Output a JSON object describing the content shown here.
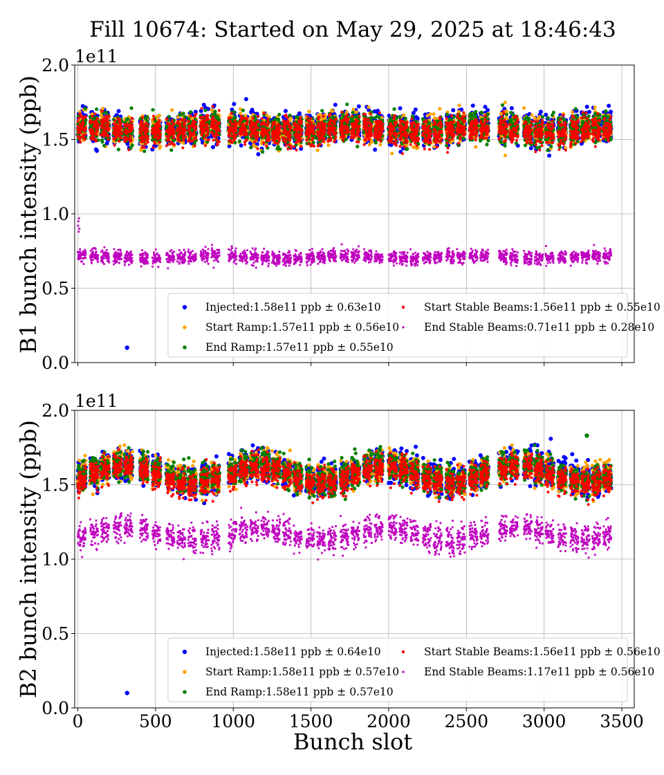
{
  "title": "Fill 10674: Started on May 29, 2025 at 18:46:43",
  "xlabel": "Bunch slot",
  "chart_data": [
    {
      "type": "scatter",
      "panel": "top",
      "ylabel": "B1 bunch intensity (ppb)",
      "y_scale_label": "1e11",
      "y_scale": 100000000000.0,
      "xlim": [
        -20,
        3580
      ],
      "ylim": [
        0.0,
        2.0
      ],
      "x_ticks": [
        "0",
        "500",
        "1000",
        "1500",
        "2000",
        "2500",
        "3000",
        "3500"
      ],
      "y_ticks": [
        "0.0",
        "0.5",
        "1.0",
        "1.5",
        "2.0"
      ],
      "grid": true,
      "legend_position": "lower-right",
      "train_starts": [
        0,
        80,
        150,
        230,
        300,
        400,
        480,
        570,
        640,
        710,
        790,
        860,
        970,
        1040,
        1110,
        1180,
        1250,
        1320,
        1390,
        1470,
        1540,
        1610,
        1690,
        1760,
        1840,
        1910,
        2000,
        2070,
        2140,
        2220,
        2290,
        2370,
        2440,
        2520,
        2590,
        2710,
        2780,
        2870,
        2940,
        3010,
        3090,
        3170,
        3240,
        3310,
        3380
      ],
      "train_length": 48,
      "series": [
        {
          "name": "Injected:1.58e11 ppb ± 0.63e10",
          "color": "#0000ff",
          "marker": "circle-large",
          "mean": 1.58,
          "std": 0.063,
          "outliers": [
            [
              317,
              0.1
            ]
          ]
        },
        {
          "name": "Start Ramp:1.57e11 ppb ± 0.56e10",
          "color": "#ffa500",
          "marker": "circle",
          "mean": 1.57,
          "std": 0.056
        },
        {
          "name": "End Ramp:1.57e11 ppb ± 0.55e10",
          "color": "#008000",
          "marker": "circle",
          "mean": 1.57,
          "std": 0.055
        },
        {
          "name": "Start Stable Beams:1.56e11 ppb ± 0.55e10",
          "color": "#ff0000",
          "marker": "circle-small",
          "mean": 1.56,
          "std": 0.055
        },
        {
          "name": "End Stable Beams:0.71e11 ppb ± 0.28e10",
          "color": "#bf00bf",
          "marker": "square-small",
          "mean": 0.71,
          "std": 0.028,
          "first_bunches": [
            [
              2,
              0.92
            ],
            [
              4,
              0.95
            ],
            [
              6,
              0.88
            ],
            [
              8,
              0.97
            ],
            [
              10,
              0.9
            ]
          ]
        }
      ]
    },
    {
      "type": "scatter",
      "panel": "bottom",
      "ylabel": "B2 bunch intensity (ppb)",
      "y_scale_label": "1e11",
      "y_scale": 100000000000.0,
      "xlim": [
        -20,
        3580
      ],
      "ylim": [
        0.0,
        2.0
      ],
      "x_ticks": [
        "0",
        "500",
        "1000",
        "1500",
        "2000",
        "2500",
        "3000",
        "3500"
      ],
      "y_ticks": [
        "0.0",
        "0.5",
        "1.0",
        "1.5",
        "2.0"
      ],
      "grid": true,
      "legend_position": "lower-right",
      "train_starts": [
        0,
        80,
        150,
        230,
        300,
        400,
        480,
        570,
        640,
        710,
        790,
        860,
        970,
        1040,
        1110,
        1180,
        1250,
        1320,
        1390,
        1470,
        1540,
        1610,
        1690,
        1760,
        1840,
        1910,
        2000,
        2070,
        2140,
        2220,
        2290,
        2370,
        2440,
        2520,
        2590,
        2710,
        2780,
        2870,
        2940,
        3010,
        3090,
        3170,
        3240,
        3310,
        3380
      ],
      "train_length": 48,
      "series": [
        {
          "name": "Injected:1.58e11 ppb ± 0.64e10",
          "color": "#0000ff",
          "marker": "circle-large",
          "mean": 1.58,
          "std": 0.064,
          "outliers": [
            [
              317,
              0.1
            ]
          ]
        },
        {
          "name": "Start Ramp:1.58e11 ppb ± 0.57e10",
          "color": "#ffa500",
          "marker": "circle",
          "mean": 1.58,
          "std": 0.057
        },
        {
          "name": "End Ramp:1.58e11 ppb ± 0.57e10",
          "color": "#008000",
          "marker": "circle",
          "mean": 1.58,
          "std": 0.057,
          "outliers": [
            [
              3275,
              1.83
            ]
          ]
        },
        {
          "name": "Start Stable Beams:1.56e11 ppb ± 0.56e10",
          "color": "#ff0000",
          "marker": "circle-small",
          "mean": 1.56,
          "std": 0.056
        },
        {
          "name": "End Stable Beams:1.17e11 ppb ± 0.56e10",
          "color": "#bf00bf",
          "marker": "square-small",
          "mean": 1.17,
          "std": 0.056
        }
      ]
    }
  ]
}
